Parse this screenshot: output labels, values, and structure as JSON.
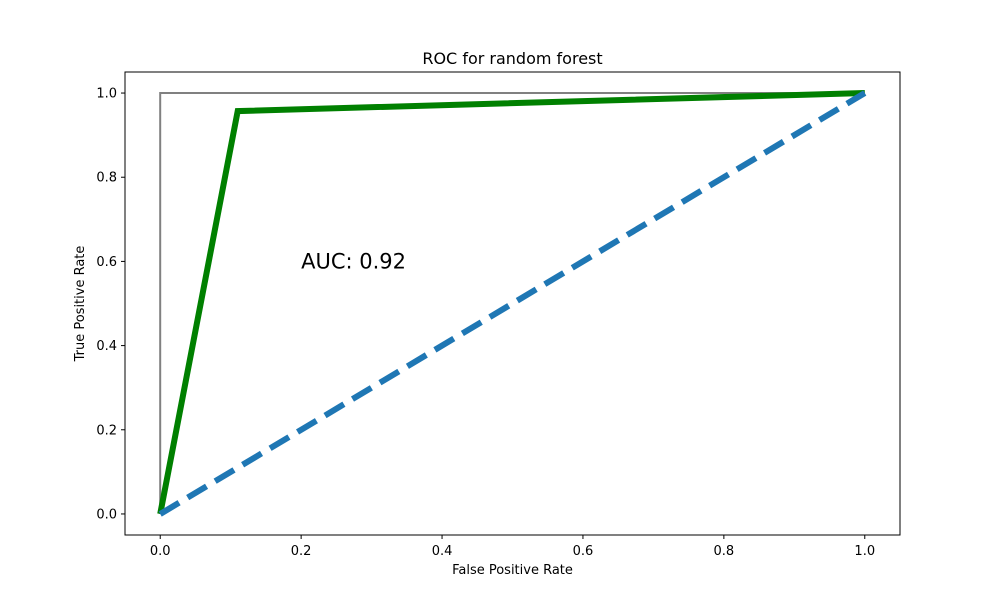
{
  "chart_data": {
    "type": "line",
    "title": "ROC for random forest",
    "xlabel": "False Positive Rate",
    "ylabel": "True Positive Rate",
    "xlim": [
      -0.05,
      1.05
    ],
    "ylim": [
      -0.05,
      1.05
    ],
    "xticks": [
      0.0,
      0.2,
      0.4,
      0.6,
      0.8,
      1.0
    ],
    "yticks": [
      0.0,
      0.2,
      0.4,
      0.6,
      0.8,
      1.0
    ],
    "xtick_labels": [
      "0.0",
      "0.2",
      "0.4",
      "0.6",
      "0.8",
      "1.0"
    ],
    "ytick_labels": [
      "0.0",
      "0.2",
      "0.4",
      "0.6",
      "0.8",
      "1.0"
    ],
    "grid": false,
    "series": [
      {
        "x": [
          0.0,
          0.0,
          1.0
        ],
        "y": [
          0.0,
          1.0,
          1.0
        ],
        "color": "#808080",
        "style": "solid"
      },
      {
        "x": [
          0.0,
          0.11,
          1.0
        ],
        "y": [
          0.0,
          0.957,
          1.0
        ],
        "color": "#008000",
        "style": "solid"
      },
      {
        "x": [
          0.0,
          1.0
        ],
        "y": [
          0.0,
          1.0
        ],
        "color": "#1f77b4",
        "style": "dashed"
      }
    ],
    "annotations": [
      {
        "text": "AUC: 0.92",
        "x": 0.2,
        "y": 0.6
      }
    ]
  }
}
